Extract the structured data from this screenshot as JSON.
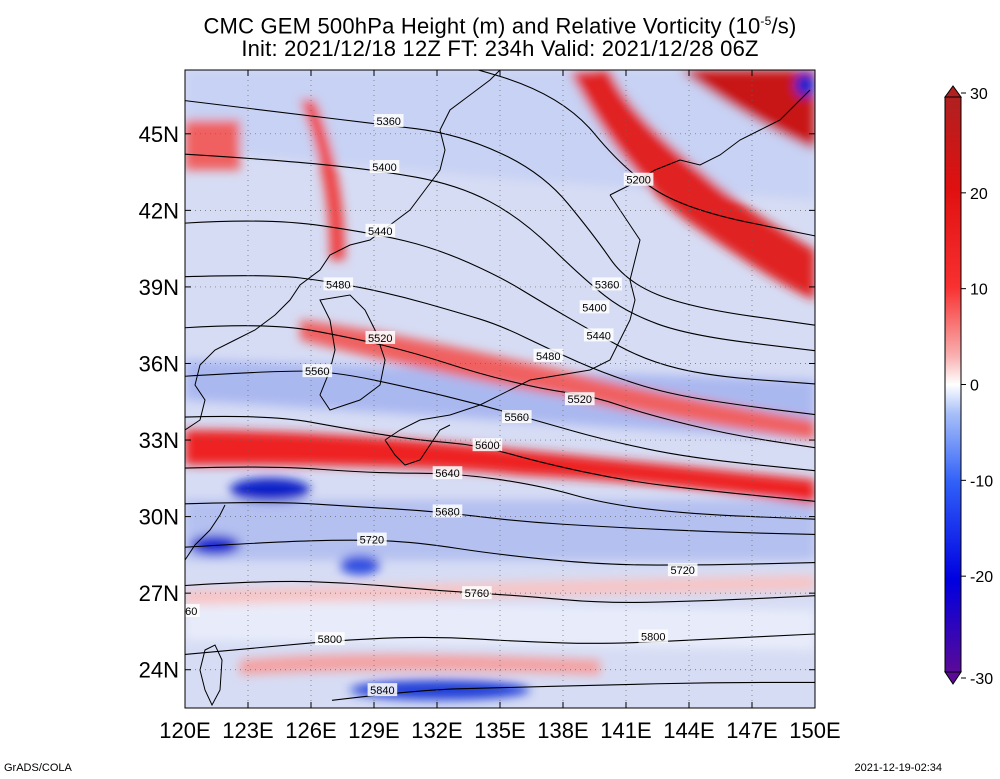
{
  "title": {
    "line1": "CMC GEM 500hPa Height (m) and Relative Vorticity (10",
    "line1_exp": "-5",
    "line1_end": "/s)",
    "line2": "Init: 2021/12/18 12Z  FT: 234h  Valid: 2021/12/28 06Z"
  },
  "map": {
    "lon_range": [
      120,
      150
    ],
    "lat_range": [
      22.5,
      47.5
    ],
    "lon_ticks": [
      {
        "lon": 120,
        "label": "120E"
      },
      {
        "lon": 123,
        "label": "123E"
      },
      {
        "lon": 126,
        "label": "126E"
      },
      {
        "lon": 129,
        "label": "129E"
      },
      {
        "lon": 132,
        "label": "132E"
      },
      {
        "lon": 135,
        "label": "135E"
      },
      {
        "lon": 138,
        "label": "138E"
      },
      {
        "lon": 141,
        "label": "141E"
      },
      {
        "lon": 144,
        "label": "144E"
      },
      {
        "lon": 147,
        "label": "147E"
      },
      {
        "lon": 150,
        "label": "150E"
      }
    ],
    "lat_ticks": [
      {
        "lat": 24,
        "label": "24N"
      },
      {
        "lat": 27,
        "label": "27N"
      },
      {
        "lat": 30,
        "label": "30N"
      },
      {
        "lat": 33,
        "label": "33N"
      },
      {
        "lat": 36,
        "label": "36N"
      },
      {
        "lat": 39,
        "label": "39N"
      },
      {
        "lat": 42,
        "label": "42N"
      },
      {
        "lat": 45,
        "label": "45N"
      }
    ],
    "contours": [
      {
        "label": "5200",
        "pts": [
          [
            120,
            49.5
          ],
          [
            126,
            49
          ],
          [
            132,
            48
          ],
          [
            138,
            46.5
          ],
          [
            141,
            43.5
          ],
          [
            144,
            42
          ],
          [
            150,
            41
          ]
        ],
        "lab_at": [
          141.6,
          43.2
        ]
      },
      {
        "label": "5360",
        "pts": [
          [
            120,
            46.3
          ],
          [
            125,
            45.8
          ],
          [
            129,
            45.4
          ],
          [
            133,
            45
          ],
          [
            137,
            43.5
          ],
          [
            139.5,
            41
          ],
          [
            141,
            39.2
          ],
          [
            144,
            38.2
          ],
          [
            150,
            37.5
          ]
        ],
        "lab_at": [
          129.7,
          45.5
        ],
        "lab2_at": [
          140.1,
          39.1
        ],
        "lab2": "5360"
      },
      {
        "label": "5400",
        "pts": [
          [
            120,
            44.2
          ],
          [
            124,
            44
          ],
          [
            129,
            43.6
          ],
          [
            133,
            43
          ],
          [
            136,
            41.7
          ],
          [
            139,
            39.3
          ],
          [
            141,
            38
          ],
          [
            144,
            37.1
          ],
          [
            150,
            36.5
          ]
        ],
        "lab_at": [
          129.5,
          43.7
        ],
        "lab2_at": [
          139.5,
          38.2
        ],
        "lab2": "5400"
      },
      {
        "label": "5440",
        "pts": [
          [
            120,
            41.5
          ],
          [
            124,
            41.7
          ],
          [
            129,
            41.1
          ],
          [
            132,
            40.5
          ],
          [
            135,
            39.4
          ],
          [
            137,
            38.4
          ],
          [
            139.5,
            37.2
          ],
          [
            142,
            36.1
          ],
          [
            145,
            35.5
          ],
          [
            150,
            35.2
          ]
        ],
        "lab_at": [
          129.3,
          41.2
        ],
        "lab2_at": [
          139.7,
          37.1
        ],
        "lab2": "5440"
      },
      {
        "label": "5480",
        "pts": [
          [
            120,
            39.4
          ],
          [
            124,
            39.5
          ],
          [
            127,
            39.2
          ],
          [
            130,
            38.7
          ],
          [
            133,
            38
          ],
          [
            135,
            37.5
          ],
          [
            137.5,
            36.5
          ],
          [
            140,
            35.6
          ],
          [
            143,
            34.8
          ],
          [
            147,
            34.3
          ],
          [
            150,
            34
          ]
        ],
        "lab_at": [
          127.3,
          39.1
        ],
        "lab2_at": [
          137.3,
          36.3
        ],
        "lab2": "5480"
      },
      {
        "label": "5520",
        "pts": [
          [
            120,
            37.4
          ],
          [
            124,
            37.6
          ],
          [
            128,
            37
          ],
          [
            131,
            36.4
          ],
          [
            134,
            35.6
          ],
          [
            137,
            35
          ],
          [
            139.5,
            34.7
          ],
          [
            142,
            34
          ],
          [
            146,
            33.2
          ],
          [
            150,
            32.7
          ]
        ],
        "lab_at": [
          129.3,
          37
        ],
        "lab2_at": [
          138.8,
          34.6
        ],
        "lab2": "5520"
      },
      {
        "label": "5560",
        "pts": [
          [
            120,
            35.5
          ],
          [
            124,
            35.7
          ],
          [
            127,
            35.7
          ],
          [
            131,
            35
          ],
          [
            134,
            34.4
          ],
          [
            137,
            33.7
          ],
          [
            140,
            33
          ],
          [
            144,
            32.3
          ],
          [
            150,
            31.8
          ]
        ],
        "lab_at": [
          126.3,
          35.7
        ],
        "lab2_at": [
          135.8,
          33.9
        ],
        "lab2": "5560"
      },
      {
        "label": "5600",
        "pts": [
          [
            120,
            33.9
          ],
          [
            124,
            34
          ],
          [
            128,
            33.4
          ],
          [
            131,
            33
          ],
          [
            134,
            32.8
          ],
          [
            137,
            32.1
          ],
          [
            141,
            31.4
          ],
          [
            145,
            31
          ],
          [
            150,
            30.6
          ]
        ],
        "lab_at": [
          134.4,
          32.8
        ]
      },
      {
        "label": "5640",
        "pts": [
          [
            120,
            31.9
          ],
          [
            124,
            32
          ],
          [
            129,
            31.7
          ],
          [
            133,
            31.7
          ],
          [
            137,
            31.2
          ],
          [
            140,
            30.5
          ],
          [
            144,
            30.1
          ],
          [
            150,
            29.9
          ]
        ],
        "lab_at": [
          132.5,
          31.7
        ]
      },
      {
        "label": "5680",
        "pts": [
          [
            120,
            30.5
          ],
          [
            124,
            30.6
          ],
          [
            128,
            30.4
          ],
          [
            132,
            30.2
          ],
          [
            136,
            29.8
          ],
          [
            140,
            29.6
          ],
          [
            145,
            29.4
          ],
          [
            150,
            29.3
          ]
        ],
        "lab_at": [
          132.5,
          30.2
        ]
      },
      {
        "label": "5720",
        "pts": [
          [
            120,
            28.8
          ],
          [
            124,
            29
          ],
          [
            128,
            29.1
          ],
          [
            131,
            29
          ],
          [
            135,
            28.5
          ],
          [
            140,
            28.1
          ],
          [
            145,
            28.1
          ],
          [
            150,
            28.2
          ]
        ],
        "lab_at": [
          128.9,
          29.1
        ],
        "lab2_at": [
          143.7,
          27.9
        ],
        "lab2": "5720"
      },
      {
        "label": "5760",
        "pts": [
          [
            120,
            27.3
          ],
          [
            124,
            27.5
          ],
          [
            128,
            27.4
          ],
          [
            132,
            27.1
          ],
          [
            136,
            26.9
          ],
          [
            140,
            26.6
          ],
          [
            145,
            26.7
          ],
          [
            150,
            26.9
          ]
        ],
        "lab_at": [
          133.9,
          27
        ]
      },
      {
        "label": "5800",
        "pts": [
          [
            120,
            24.6
          ],
          [
            124,
            24.9
          ],
          [
            128,
            25.2
          ],
          [
            132,
            25.3
          ],
          [
            136,
            25.1
          ],
          [
            140,
            25
          ],
          [
            145,
            25.2
          ],
          [
            150,
            25.4
          ]
        ],
        "lab_at": [
          126.9,
          25.2
        ],
        "lab2_at": [
          142.3,
          25.3
        ],
        "lab2": "5800"
      },
      {
        "label": "5840",
        "pts": [
          [
            127,
            22.8
          ],
          [
            131,
            23.2
          ],
          [
            135,
            23.3
          ],
          [
            140,
            23.4
          ],
          [
            145,
            23.5
          ],
          [
            150,
            23.5
          ]
        ],
        "lab_at": [
          129.4,
          23.2
        ]
      }
    ],
    "edge_label": {
      "label": "60",
      "at": [
        120.3,
        26.3
      ]
    }
  },
  "colorbar": {
    "min": -30,
    "max": 30,
    "ticks": [
      {
        "v": 30,
        "label": "30"
      },
      {
        "v": 20,
        "label": "20"
      },
      {
        "v": 10,
        "label": "10"
      },
      {
        "v": 0,
        "label": "0"
      },
      {
        "v": -10,
        "label": "-10"
      },
      {
        "v": -20,
        "label": "-20"
      },
      {
        "v": -30,
        "label": "-30"
      }
    ],
    "colors": [
      "#5a0a98",
      "#0000e0",
      "#3060f8",
      "#90b0f8",
      "#ffffff",
      "#f8a0a0",
      "#f82020",
      "#d01010",
      "#b02020"
    ]
  },
  "footer": {
    "left": "GrADS/COLA",
    "right": "2021-12-19-02:34"
  }
}
